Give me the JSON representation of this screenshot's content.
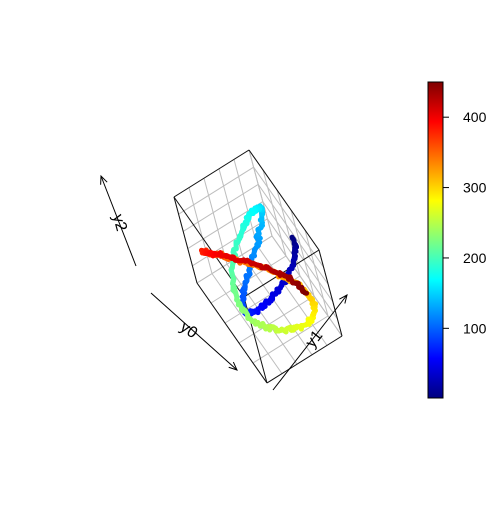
{
  "chart_data": {
    "type": "line",
    "plot_kind": "3d-trajectory",
    "xlabel": "y0",
    "ylabel": "y1",
    "zlabel": "y2",
    "color_variable_range": [
      1,
      450
    ],
    "colorbar": {
      "ticks": [
        100,
        200,
        300,
        400
      ],
      "tick_labels": [
        "100",
        "200",
        "300",
        "400"
      ],
      "palette": [
        "#00007F",
        "#0000FF",
        "#007FFF",
        "#00FFFF",
        "#7FFF7F",
        "#FFFF00",
        "#FF7F00",
        "#FF0000",
        "#7F0000"
      ]
    },
    "grid": true,
    "box": true,
    "axis_ticks_labeled": false,
    "line_color": "#111111",
    "grid_color": "#bdbdbd"
  }
}
